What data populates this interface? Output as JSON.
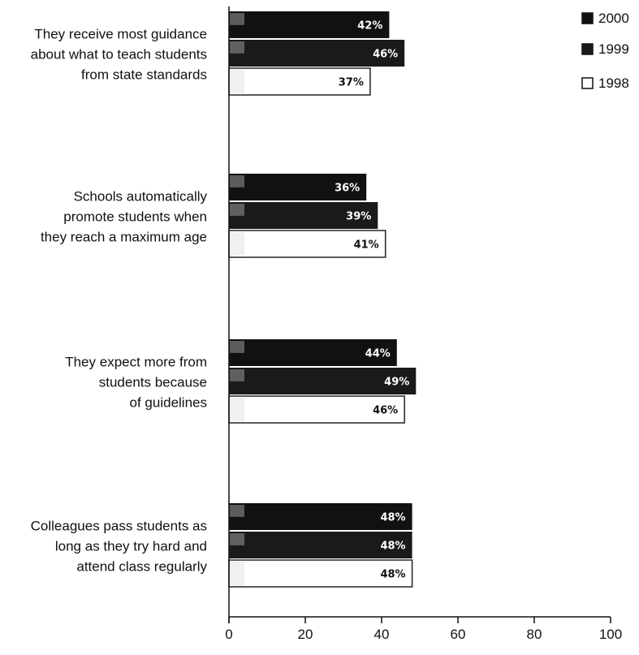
{
  "chart_data": {
    "type": "bar",
    "orientation": "horizontal",
    "categories": [
      [
        "They receive most guidance",
        "about what to teach students",
        "from state standards"
      ],
      [
        "Schools automatically",
        "promote students when",
        "they reach a maximum age"
      ],
      [
        "They expect more from",
        "students because",
        "of guidelines"
      ],
      [
        "Colleagues pass students as",
        "long as they try hard and",
        "attend class regularly"
      ]
    ],
    "series": [
      {
        "name": "2000",
        "values": [
          42,
          36,
          44,
          48
        ],
        "labels": [
          "42%",
          "36%",
          "44%",
          "48%"
        ],
        "color": "#111111"
      },
      {
        "name": "1999",
        "values": [
          46,
          39,
          49,
          48
        ],
        "labels": [
          "46%",
          "39%",
          "49%",
          "48%"
        ],
        "color": "#1a1a1a"
      },
      {
        "name": "1998",
        "values": [
          37,
          41,
          46,
          48
        ],
        "labels": [
          "37%",
          "41%",
          "46%",
          "48%"
        ],
        "color": "#ffffff"
      }
    ],
    "xlim": [
      0,
      100
    ],
    "xticks": [
      0,
      20,
      40,
      60,
      80,
      100
    ],
    "xtick_labels": [
      "0",
      "20",
      "40",
      "60",
      "80",
      "100"
    ],
    "legend_position": "top-right",
    "grid": false
  }
}
